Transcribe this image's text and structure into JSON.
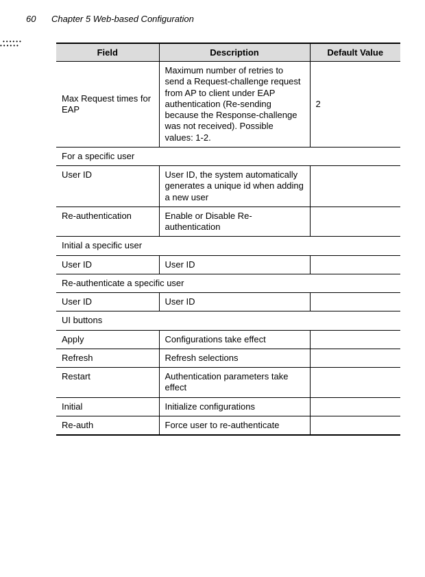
{
  "page": {
    "number": "60",
    "chapter": "Chapter 5 Web-based Configuration"
  },
  "table": {
    "headers": {
      "field": "Field",
      "description": "Description",
      "default": "Default Value"
    },
    "rows": [
      {
        "type": "data",
        "field": "Max Request times for EAP",
        "description": "Maximum number of retries to send a Request-challenge request from AP to client under EAP authentication (Re-sending because the Response-challenge was not received). Possible values: 1-2.",
        "default": "2"
      },
      {
        "type": "section",
        "label": "For a specific user"
      },
      {
        "type": "data",
        "field": "User ID",
        "description": "User ID, the system automatically generates a unique id when adding a new user",
        "default": ""
      },
      {
        "type": "data",
        "field": "Re-authentication",
        "description": "Enable or Disable Re-authentication",
        "default": ""
      },
      {
        "type": "section",
        "label": "Initial a specific user"
      },
      {
        "type": "data",
        "field": "User ID",
        "description": "User ID",
        "default": ""
      },
      {
        "type": "section",
        "label": "Re-authenticate a specific user"
      },
      {
        "type": "data",
        "field": "User ID",
        "description": "User ID",
        "default": ""
      },
      {
        "type": "section",
        "label": "UI buttons"
      },
      {
        "type": "data",
        "field": "Apply",
        "description": "Configurations take effect",
        "default": ""
      },
      {
        "type": "data",
        "field": "Refresh",
        "description": "Refresh selections",
        "default": ""
      },
      {
        "type": "data",
        "field": "Restart",
        "description": "Authentication parameters take effect",
        "default": ""
      },
      {
        "type": "data",
        "field": "Initial",
        "description": "Initialize configurations",
        "default": ""
      },
      {
        "type": "data",
        "field": "Re-auth",
        "description": "Force user to re-authenticate",
        "default": ""
      }
    ]
  }
}
